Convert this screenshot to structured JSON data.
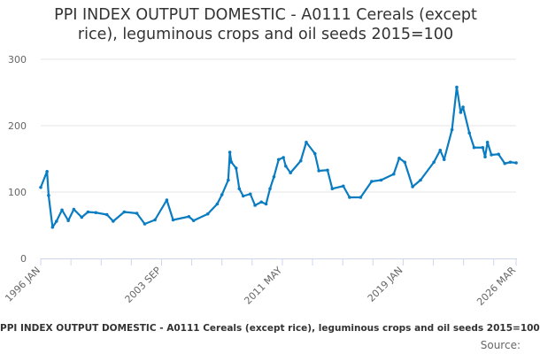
{
  "chart_data": {
    "type": "line",
    "title_line1": "PPI INDEX OUTPUT DOMESTIC - A0111 Cereals (except",
    "title_line2": "rice), leguminous crops and oil seeds 2015=100",
    "xlabel": "",
    "ylabel": "",
    "ylim": [
      0,
      300
    ],
    "yticks": [
      0,
      100,
      200,
      300
    ],
    "xrange": [
      "1996 JAN",
      "2026 MAR"
    ],
    "xtick_labels": [
      "1996 JAN",
      "2003 SEP",
      "2011 MAY",
      "2019 JAN",
      "2026 MAR"
    ],
    "grid": true,
    "legend": "none",
    "series": [
      {
        "name": "PPI INDEX OUTPUT DOMESTIC - A0111 Cereals (except rice), leguminous crops and oil seeds 2015=100",
        "color": "#0a7cc1",
        "x": [
          1996.0,
          1996.4,
          1996.5,
          1996.75,
          1997.0,
          1997.35,
          1997.75,
          1998.1,
          1998.6,
          1999.0,
          1999.5,
          2000.2,
          2000.6,
          2001.3,
          2002.1,
          2002.6,
          2003.25,
          2004.0,
          2004.4,
          2005.4,
          2005.7,
          2006.6,
          2007.2,
          2007.5,
          2007.9,
          2008.0,
          2008.1,
          2008.4,
          2008.6,
          2008.85,
          2009.3,
          2009.6,
          2010.0,
          2010.3,
          2010.55,
          2010.8,
          2011.1,
          2011.4,
          2011.55,
          2011.85,
          2012.5,
          2012.85,
          2013.4,
          2013.65,
          2014.2,
          2014.5,
          2015.2,
          2015.6,
          2016.3,
          2017.0,
          2017.6,
          2018.4,
          2018.75,
          2019.1,
          2019.6,
          2020.1,
          2020.95,
          2021.35,
          2021.6,
          2022.1,
          2022.4,
          2022.65,
          2022.8,
          2023.2,
          2023.5,
          2024.05,
          2024.2,
          2024.35,
          2024.6,
          2025.05,
          2025.45,
          2025.8,
          2026.17
        ],
        "y": [
          107,
          131,
          95,
          47,
          56,
          73,
          57,
          74,
          62,
          70,
          69,
          66,
          56,
          70,
          68,
          52,
          58,
          88,
          58,
          63,
          57,
          67,
          82,
          96,
          118,
          160,
          145,
          136,
          105,
          94,
          97,
          80,
          85,
          82,
          105,
          123,
          149,
          152,
          139,
          129,
          147,
          175,
          158,
          132,
          133,
          105,
          109,
          92,
          92,
          116,
          118,
          127,
          151,
          145,
          108,
          118,
          145,
          163,
          149,
          194,
          258,
          220,
          228,
          189,
          167,
          167,
          153,
          175,
          156,
          157,
          143,
          145,
          144
        ]
      }
    ]
  },
  "footer_title": "PPI INDEX OUTPUT DOMESTIC - A0111 Cereals (except rice), leguminous crops and oil seeds 2015=100",
  "source_label": "Source:"
}
